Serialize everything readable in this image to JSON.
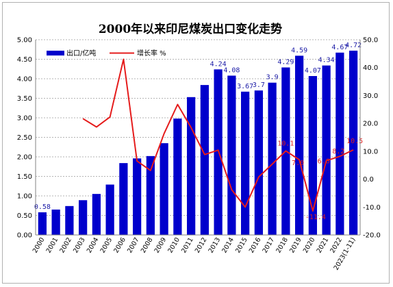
{
  "colors": {
    "bar": "#0000CC",
    "line": "#E51B1B",
    "grid": "#9a9a9a",
    "bar_label": "#1a1aa6",
    "line_label": "#e02020"
  },
  "chart_data": {
    "type": "bar",
    "title": "2000年以来印尼煤炭出口变化走势",
    "categories": [
      "2000",
      "2001",
      "2002",
      "2003",
      "2004",
      "2005",
      "2006",
      "2007",
      "2008",
      "2009",
      "2010",
      "2011",
      "2012",
      "2013",
      "2014",
      "2015",
      "2016",
      "2017",
      "2018",
      "2019",
      "2020",
      "2021",
      "2022",
      "2023(1-11)"
    ],
    "legend": {
      "position": "top-left"
    },
    "grid": true,
    "y_left": {
      "ylim": [
        0,
        5
      ],
      "ticks": [
        "0.00",
        "0.50",
        "1.00",
        "1.50",
        "2.00",
        "2.50",
        "3.00",
        "3.50",
        "4.00",
        "4.50",
        "5.00"
      ]
    },
    "y_right": {
      "ylim": [
        -20,
        50
      ],
      "ticks": [
        "-20.0",
        "-10.0",
        "0.0",
        "10.0",
        "20.0",
        "30.0",
        "40.0",
        "50.0"
      ]
    },
    "series": [
      {
        "name": "出口/亿吨",
        "type": "bar",
        "axis": "left",
        "values": [
          0.58,
          0.65,
          0.74,
          0.89,
          1.05,
          1.29,
          1.84,
          1.96,
          2.02,
          2.35,
          2.98,
          3.53,
          3.84,
          4.24,
          4.08,
          3.67,
          3.7,
          3.9,
          4.29,
          4.59,
          4.07,
          4.34,
          4.67,
          4.72
        ],
        "labels": [
          "0.58",
          "",
          "",
          "",
          "",
          "",
          "",
          "",
          "",
          "",
          "",
          "",
          "",
          "4.24",
          "4.08",
          "3.67",
          "3.7",
          "3.9",
          "4.29",
          "4.59",
          "4.07",
          "4.34",
          "4.67",
          "4.72"
        ]
      },
      {
        "name": "增长率 %",
        "type": "line",
        "axis": "right",
        "values": [
          null,
          null,
          null,
          21.7,
          18.7,
          22.3,
          43.0,
          6.5,
          3.1,
          16.3,
          26.8,
          18.5,
          8.8,
          10.4,
          -3.8,
          -10.0,
          0.8,
          5.4,
          10.1,
          7.0,
          -11.4,
          6.6,
          8.2,
          10.5
        ],
        "labels": [
          "",
          "",
          "",
          "",
          "",
          "",
          "",
          "",
          "",
          "",
          "",
          "",
          "",
          "",
          "",
          "",
          "",
          "",
          "10.1",
          "7.0",
          "-11.4",
          "6.6",
          "8.2",
          "10.5"
        ]
      }
    ]
  }
}
